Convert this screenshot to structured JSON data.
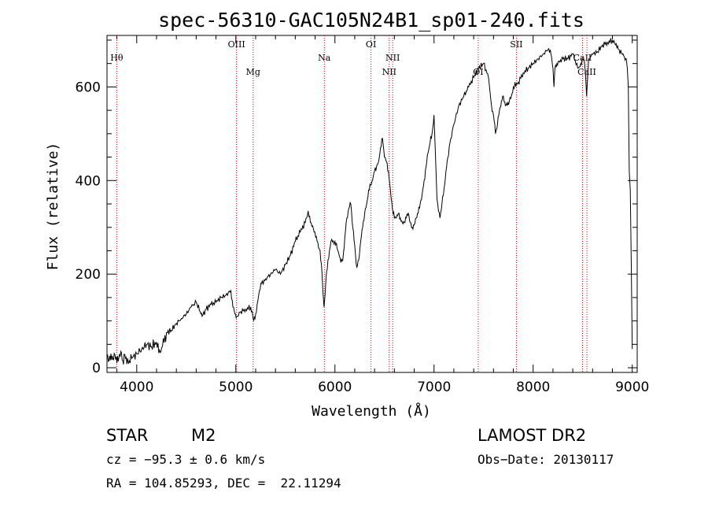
{
  "chart_data": {
    "type": "line",
    "title": "spec-56310-GAC105N24B1_sp01-240.fits",
    "xlabel": "Wavelength (Å)",
    "ylabel": "Flux (relative)",
    "xlim": [
      3700,
      9050
    ],
    "ylim": [
      -10,
      710
    ],
    "xticks": [
      4000,
      5000,
      6000,
      7000,
      8000,
      9000
    ],
    "yticks": [
      0,
      200,
      400,
      600
    ],
    "grid": false,
    "series": [
      {
        "x": [
          3700,
          3720,
          3740,
          3760,
          3780,
          3800,
          3820,
          3840,
          3860,
          3880,
          3900,
          3950,
          4000,
          4050,
          4100,
          4150,
          4200,
          4230,
          4260,
          4300,
          4350,
          4400,
          4450,
          4500,
          4550,
          4600,
          4640,
          4660,
          4700,
          4750,
          4800,
          4850,
          4900,
          4950,
          4970,
          4990,
          5010,
          5050,
          5100,
          5150,
          5180,
          5200,
          5230,
          5260,
          5300,
          5350,
          5400,
          5450,
          5500,
          5550,
          5600,
          5650,
          5700,
          5730,
          5760,
          5790,
          5820,
          5850,
          5870,
          5880,
          5890,
          5900,
          5910,
          5930,
          5960,
          6000,
          6030,
          6060,
          6080,
          6100,
          6120,
          6140,
          6160,
          6180,
          6200,
          6220,
          6240,
          6260,
          6280,
          6300,
          6320,
          6340,
          6360,
          6380,
          6400,
          6420,
          6440,
          6460,
          6480,
          6500,
          6520,
          6540,
          6560,
          6580,
          6600,
          6620,
          6640,
          6660,
          6680,
          6700,
          6720,
          6740,
          6760,
          6780,
          6800,
          6820,
          6840,
          6860,
          6880,
          6900,
          6920,
          6940,
          6960,
          6980,
          7000,
          7030,
          7060,
          7080,
          7100,
          7120,
          7140,
          7160,
          7200,
          7250,
          7300,
          7350,
          7400,
          7450,
          7500,
          7550,
          7580,
          7600,
          7620,
          7640,
          7660,
          7680,
          7700,
          7720,
          7740,
          7760,
          7780,
          7800,
          7850,
          7900,
          7950,
          8000,
          8050,
          8100,
          8150,
          8180,
          8200,
          8210,
          8220,
          8240,
          8260,
          8300,
          8350,
          8400,
          8450,
          8480,
          8500,
          8520,
          8530,
          8540,
          8550,
          8560,
          8580,
          8600,
          8650,
          8700,
          8750,
          8800,
          8830,
          8860,
          8900,
          8920,
          8940,
          8950,
          8960,
          8970,
          8980,
          8990,
          9000
        ],
        "y": [
          25,
          15,
          30,
          18,
          28,
          10,
          22,
          35,
          15,
          28,
          8,
          20,
          30,
          40,
          50,
          45,
          55,
          38,
          45,
          75,
          80,
          95,
          105,
          115,
          130,
          140,
          120,
          110,
          125,
          135,
          140,
          150,
          155,
          165,
          130,
          115,
          110,
          120,
          125,
          130,
          100,
          115,
          155,
          180,
          190,
          200,
          210,
          200,
          220,
          240,
          270,
          290,
          310,
          335,
          310,
          290,
          270,
          250,
          200,
          160,
          130,
          155,
          190,
          230,
          270,
          270,
          250,
          225,
          230,
          280,
          320,
          340,
          350,
          300,
          260,
          215,
          230,
          270,
          300,
          330,
          350,
          380,
          390,
          400,
          420,
          430,
          440,
          470,
          490,
          450,
          440,
          420,
          380,
          340,
          320,
          320,
          330,
          320,
          310,
          310,
          320,
          330,
          310,
          300,
          305,
          320,
          330,
          350,
          370,
          400,
          430,
          460,
          480,
          500,
          540,
          360,
          320,
          350,
          380,
          420,
          450,
          480,
          520,
          560,
          580,
          600,
          620,
          640,
          650,
          620,
          560,
          540,
          500,
          520,
          550,
          570,
          580,
          560,
          560,
          570,
          580,
          600,
          610,
          630,
          640,
          650,
          660,
          670,
          680,
          670,
          640,
          600,
          640,
          650,
          655,
          660,
          660,
          670,
          640,
          650,
          660,
          650,
          620,
          580,
          620,
          660,
          665,
          670,
          675,
          690,
          695,
          700,
          690,
          680,
          670,
          665,
          660,
          640,
          600,
          420,
          380,
          230,
          40
        ]
      }
    ],
    "lines": [
      {
        "label": "Hθ",
        "x": 3798,
        "row": 1
      },
      {
        "label": "OIII",
        "x": 5007,
        "row": 0
      },
      {
        "label": "Mg",
        "x": 5175,
        "row": 2
      },
      {
        "label": "Na",
        "x": 5893,
        "row": 1
      },
      {
        "label": "OI",
        "x": 6364,
        "row": 0
      },
      {
        "label": "NII",
        "x": 6548,
        "row": 2
      },
      {
        "label": "NII",
        "x": 6583,
        "row": 1
      },
      {
        "label": "OI",
        "x": 7446,
        "row": 2
      },
      {
        "label": "SII",
        "x": 7831,
        "row": 0
      },
      {
        "label": "CaII",
        "x": 8498,
        "row": 1
      },
      {
        "label": "CaII",
        "x": 8542,
        "row": 2
      }
    ]
  },
  "info": {
    "object_class": "STAR",
    "subclass": "M2",
    "survey": "LAMOST DR2",
    "cz": "cz = −95.3 ± 0.6 km/s",
    "obs_date": "Obs−Date: 20130117",
    "coords": "RA = 104.85293, DEC =  22.11294"
  }
}
